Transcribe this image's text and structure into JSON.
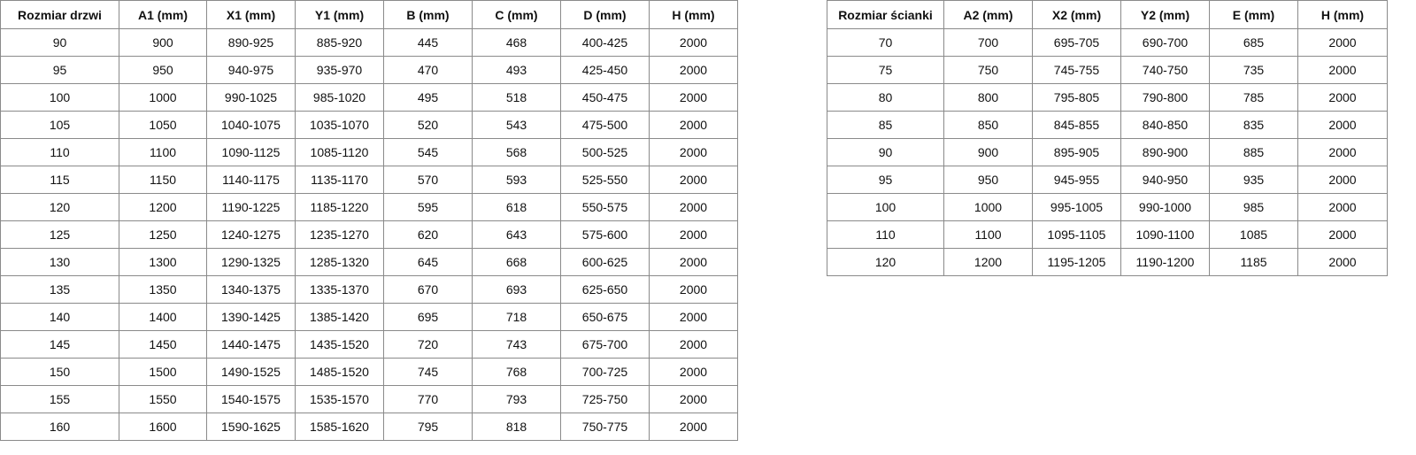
{
  "table_doors": {
    "headers": [
      "Rozmiar drzwi",
      "A1 (mm)",
      "X1 (mm)",
      "Y1 (mm)",
      "B (mm)",
      "C (mm)",
      "D (mm)",
      "H (mm)"
    ],
    "rows": [
      [
        "90",
        "900",
        "890-925",
        "885-920",
        "445",
        "468",
        "400-425",
        "2000"
      ],
      [
        "95",
        "950",
        "940-975",
        "935-970",
        "470",
        "493",
        "425-450",
        "2000"
      ],
      [
        "100",
        "1000",
        "990-1025",
        "985-1020",
        "495",
        "518",
        "450-475",
        "2000"
      ],
      [
        "105",
        "1050",
        "1040-1075",
        "1035-1070",
        "520",
        "543",
        "475-500",
        "2000"
      ],
      [
        "110",
        "1100",
        "1090-1125",
        "1085-1120",
        "545",
        "568",
        "500-525",
        "2000"
      ],
      [
        "115",
        "1150",
        "1140-1175",
        "1135-1170",
        "570",
        "593",
        "525-550",
        "2000"
      ],
      [
        "120",
        "1200",
        "1190-1225",
        "1185-1220",
        "595",
        "618",
        "550-575",
        "2000"
      ],
      [
        "125",
        "1250",
        "1240-1275",
        "1235-1270",
        "620",
        "643",
        "575-600",
        "2000"
      ],
      [
        "130",
        "1300",
        "1290-1325",
        "1285-1320",
        "645",
        "668",
        "600-625",
        "2000"
      ],
      [
        "135",
        "1350",
        "1340-1375",
        "1335-1370",
        "670",
        "693",
        "625-650",
        "2000"
      ],
      [
        "140",
        "1400",
        "1390-1425",
        "1385-1420",
        "695",
        "718",
        "650-675",
        "2000"
      ],
      [
        "145",
        "1450",
        "1440-1475",
        "1435-1520",
        "720",
        "743",
        "675-700",
        "2000"
      ],
      [
        "150",
        "1500",
        "1490-1525",
        "1485-1520",
        "745",
        "768",
        "700-725",
        "2000"
      ],
      [
        "155",
        "1550",
        "1540-1575",
        "1535-1570",
        "770",
        "793",
        "725-750",
        "2000"
      ],
      [
        "160",
        "1600",
        "1590-1625",
        "1585-1620",
        "795",
        "818",
        "750-775",
        "2000"
      ]
    ]
  },
  "table_walls": {
    "headers": [
      "Rozmiar ścianki",
      "A2 (mm)",
      "X2 (mm)",
      "Y2 (mm)",
      "E (mm)",
      "H (mm)"
    ],
    "rows": [
      [
        "70",
        "700",
        "695-705",
        "690-700",
        "685",
        "2000"
      ],
      [
        "75",
        "750",
        "745-755",
        "740-750",
        "735",
        "2000"
      ],
      [
        "80",
        "800",
        "795-805",
        "790-800",
        "785",
        "2000"
      ],
      [
        "85",
        "850",
        "845-855",
        "840-850",
        "835",
        "2000"
      ],
      [
        "90",
        "900",
        "895-905",
        "890-900",
        "885",
        "2000"
      ],
      [
        "95",
        "950",
        "945-955",
        "940-950",
        "935",
        "2000"
      ],
      [
        "100",
        "1000",
        "995-1005",
        "990-1000",
        "985",
        "2000"
      ],
      [
        "110",
        "1100",
        "1095-1105",
        "1090-1100",
        "1085",
        "2000"
      ],
      [
        "120",
        "1200",
        "1195-1205",
        "1190-1200",
        "1185",
        "2000"
      ]
    ]
  }
}
